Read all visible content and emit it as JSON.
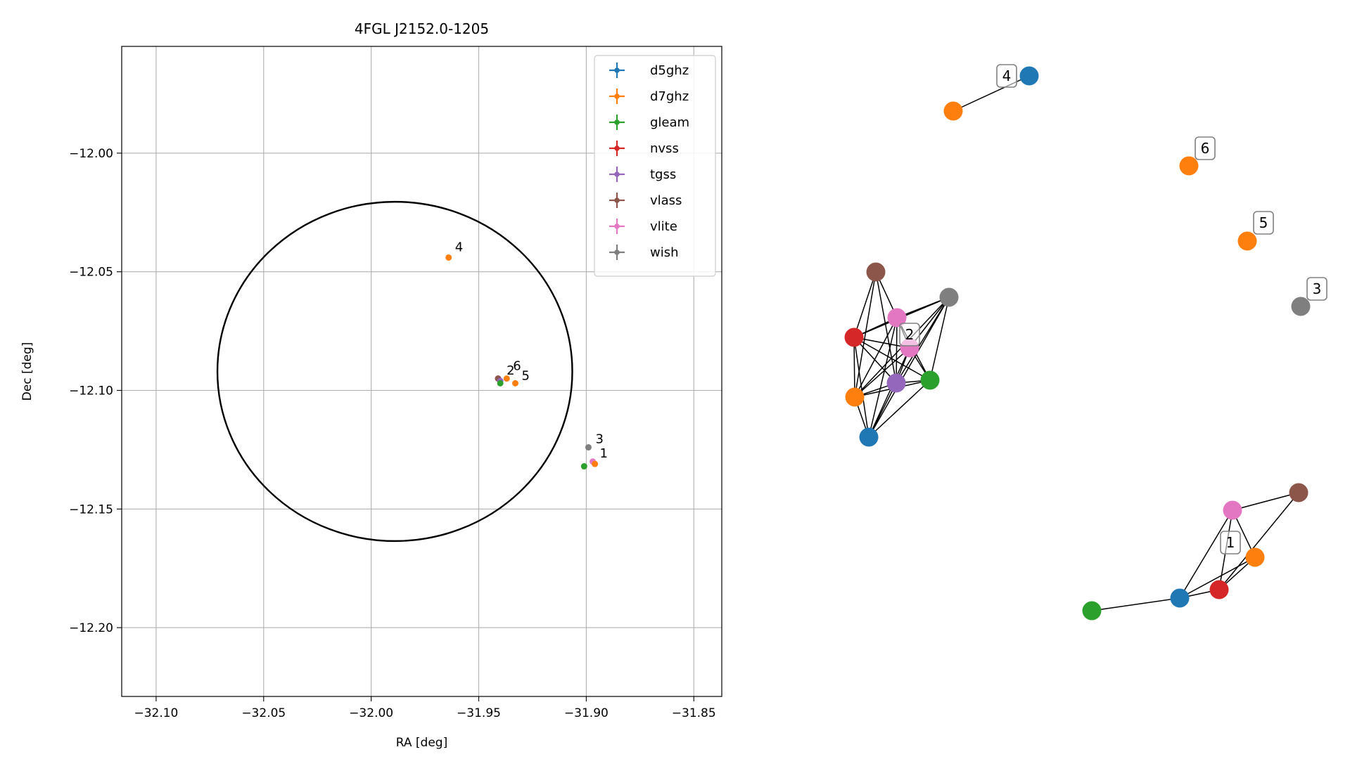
{
  "colors": {
    "d5ghz": "#1f77b4",
    "d7ghz": "#ff7f0e",
    "gleam": "#2ca02c",
    "nvss": "#d62728",
    "tgss": "#9467bd",
    "vlass": "#8c564b",
    "vlite": "#e377c2",
    "wish": "#7f7f7f"
  },
  "chart_data": [
    {
      "type": "scatter",
      "title": "4FGL J2152.0-1205",
      "xlabel": "RA [deg]",
      "ylabel": "Dec [deg]",
      "xlim": [
        -32.116,
        -31.837
      ],
      "ylim": [
        -12.229,
        -11.955
      ],
      "xticks": [
        -32.1,
        -32.05,
        -32.0,
        -31.95,
        -31.9,
        -31.85
      ],
      "xtick_labels": [
        "−32.10",
        "−32.05",
        "−32.00",
        "−31.95",
        "−31.90",
        "−31.85"
      ],
      "yticks": [
        -12.0,
        -12.05,
        -12.1,
        -12.15,
        -12.2
      ],
      "ytick_labels": [
        "−12.00",
        "−12.05",
        "−12.10",
        "−12.15",
        "−12.20"
      ],
      "grid": true,
      "legend_position": "upper right",
      "legend": [
        "d5ghz",
        "d7ghz",
        "gleam",
        "nvss",
        "tgss",
        "vlass",
        "vlite",
        "wish"
      ],
      "ellipse": {
        "center": [
          -31.989,
          -12.092
        ],
        "ra_halfwidth": 0.0825,
        "dec_halfheight": 0.0715
      },
      "points": [
        {
          "survey": "d7ghz",
          "ra": -31.964,
          "dec": -12.044
        },
        {
          "survey": "d7ghz",
          "ra": -31.937,
          "dec": -12.095
        },
        {
          "survey": "d7ghz",
          "ra": -31.933,
          "dec": -12.097
        },
        {
          "survey": "vlite",
          "ra": -31.941,
          "dec": -12.095
        },
        {
          "survey": "vlass",
          "ra": -31.941,
          "dec": -12.095
        },
        {
          "survey": "tgss",
          "ra": -31.94,
          "dec": -12.096
        },
        {
          "survey": "gleam",
          "ra": -31.94,
          "dec": -12.097
        },
        {
          "survey": "wish",
          "ra": -31.899,
          "dec": -12.124
        },
        {
          "survey": "vlite",
          "ra": -31.897,
          "dec": -12.13
        },
        {
          "survey": "d7ghz",
          "ra": -31.896,
          "dec": -12.131
        },
        {
          "survey": "gleam",
          "ra": -31.901,
          "dec": -12.132
        }
      ],
      "labels": [
        {
          "text": "4",
          "ra": -31.964,
          "dec": -12.044
        },
        {
          "text": "2",
          "ra": -31.94,
          "dec": -12.096
        },
        {
          "text": "6",
          "ra": -31.937,
          "dec": -12.095
        },
        {
          "text": "5",
          "ra": -31.933,
          "dec": -12.097
        },
        {
          "text": "3",
          "ra": -31.899,
          "dec": -12.124
        },
        {
          "text": "1",
          "ra": -31.897,
          "dec": -12.13
        }
      ]
    },
    {
      "type": "network",
      "nodes": [
        {
          "id": "4a",
          "survey": "d5ghz"
        },
        {
          "id": "4b",
          "survey": "d7ghz"
        },
        {
          "id": "6a",
          "survey": "d7ghz"
        },
        {
          "id": "5a",
          "survey": "d7ghz"
        },
        {
          "id": "3a",
          "survey": "wish"
        },
        {
          "id": "2v",
          "survey": "vlass"
        },
        {
          "id": "2w",
          "survey": "wish"
        },
        {
          "id": "2l",
          "survey": "vlite"
        },
        {
          "id": "2n",
          "survey": "nvss"
        },
        {
          "id": "2l2",
          "survey": "vlite"
        },
        {
          "id": "2t",
          "survey": "tgss"
        },
        {
          "id": "2g",
          "survey": "gleam"
        },
        {
          "id": "2o",
          "survey": "d7ghz"
        },
        {
          "id": "2b",
          "survey": "d5ghz"
        },
        {
          "id": "1v",
          "survey": "vlass"
        },
        {
          "id": "1l",
          "survey": "vlite"
        },
        {
          "id": "1o",
          "survey": "d7ghz"
        },
        {
          "id": "1n",
          "survey": "nvss"
        },
        {
          "id": "1b",
          "survey": "d5ghz"
        },
        {
          "id": "1g",
          "survey": "gleam"
        }
      ],
      "edges": [
        [
          "4a",
          "4b"
        ],
        [
          "2v",
          "2n"
        ],
        [
          "2v",
          "2l"
        ],
        [
          "2v",
          "2t"
        ],
        [
          "2v",
          "2o"
        ],
        [
          "2w",
          "2l"
        ],
        [
          "2w",
          "2l2"
        ],
        [
          "2w",
          "2n"
        ],
        [
          "2w",
          "2t"
        ],
        [
          "2w",
          "2g"
        ],
        [
          "2w",
          "2o"
        ],
        [
          "2w",
          "2b"
        ],
        [
          "2l",
          "2n"
        ],
        [
          "2l",
          "2l2"
        ],
        [
          "2l",
          "2t"
        ],
        [
          "2l",
          "2g"
        ],
        [
          "2l",
          "2o"
        ],
        [
          "2l",
          "2b"
        ],
        [
          "2n",
          "2l2"
        ],
        [
          "2n",
          "2t"
        ],
        [
          "2n",
          "2g"
        ],
        [
          "2n",
          "2o"
        ],
        [
          "2n",
          "2b"
        ],
        [
          "2l2",
          "2t"
        ],
        [
          "2l2",
          "2g"
        ],
        [
          "2l2",
          "2o"
        ],
        [
          "2l2",
          "2b"
        ],
        [
          "2t",
          "2g"
        ],
        [
          "2t",
          "2o"
        ],
        [
          "2t",
          "2b"
        ],
        [
          "2g",
          "2o"
        ],
        [
          "2g",
          "2b"
        ],
        [
          "2o",
          "2b"
        ],
        [
          "1l",
          "1v"
        ],
        [
          "1v",
          "1n"
        ],
        [
          "1l",
          "1o"
        ],
        [
          "1l",
          "1n"
        ],
        [
          "1l",
          "1b"
        ],
        [
          "1o",
          "1n"
        ],
        [
          "1o",
          "1b"
        ],
        [
          "1n",
          "1b"
        ],
        [
          "1b",
          "1g"
        ]
      ],
      "group_labels": [
        {
          "text": "4",
          "near": "4a"
        },
        {
          "text": "6",
          "near": "6a"
        },
        {
          "text": "5",
          "near": "5a"
        },
        {
          "text": "3",
          "near": "3a"
        },
        {
          "text": "2",
          "near": "2l2"
        },
        {
          "text": "1",
          "near": "1l"
        }
      ]
    }
  ]
}
